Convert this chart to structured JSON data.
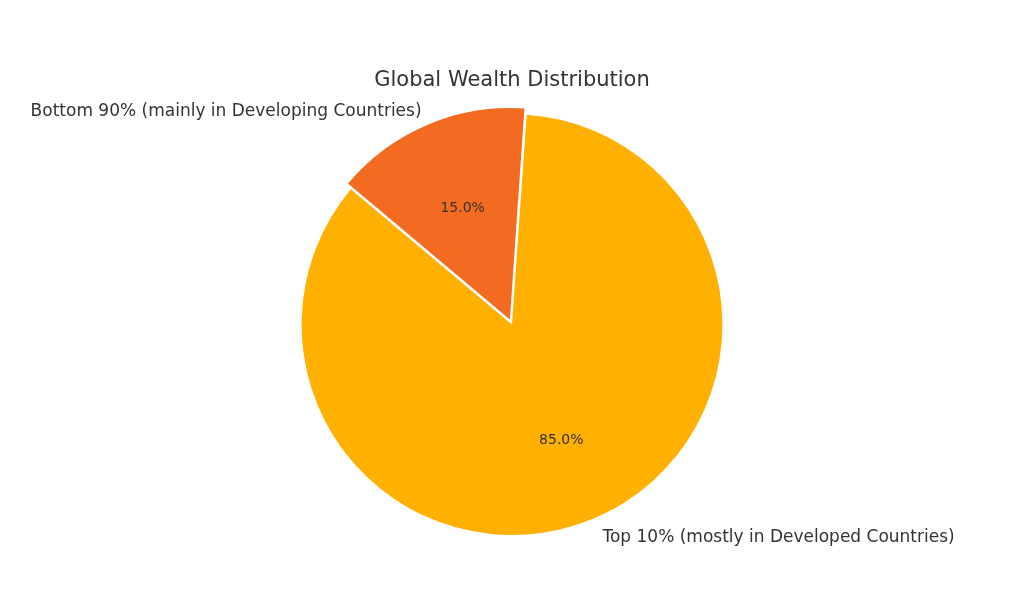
{
  "chart_data": {
    "type": "pie",
    "title": "Global Wealth Distribution",
    "categories": [
      "Bottom 90% (mainly in Developing Countries)",
      "Top 10% (mostly in Developed Countries)"
    ],
    "values": [
      15,
      85
    ],
    "colors": [
      "#f26b21",
      "#ffb000"
    ],
    "value_labels": [
      "15.0%",
      "85.0%"
    ],
    "legend": false
  }
}
